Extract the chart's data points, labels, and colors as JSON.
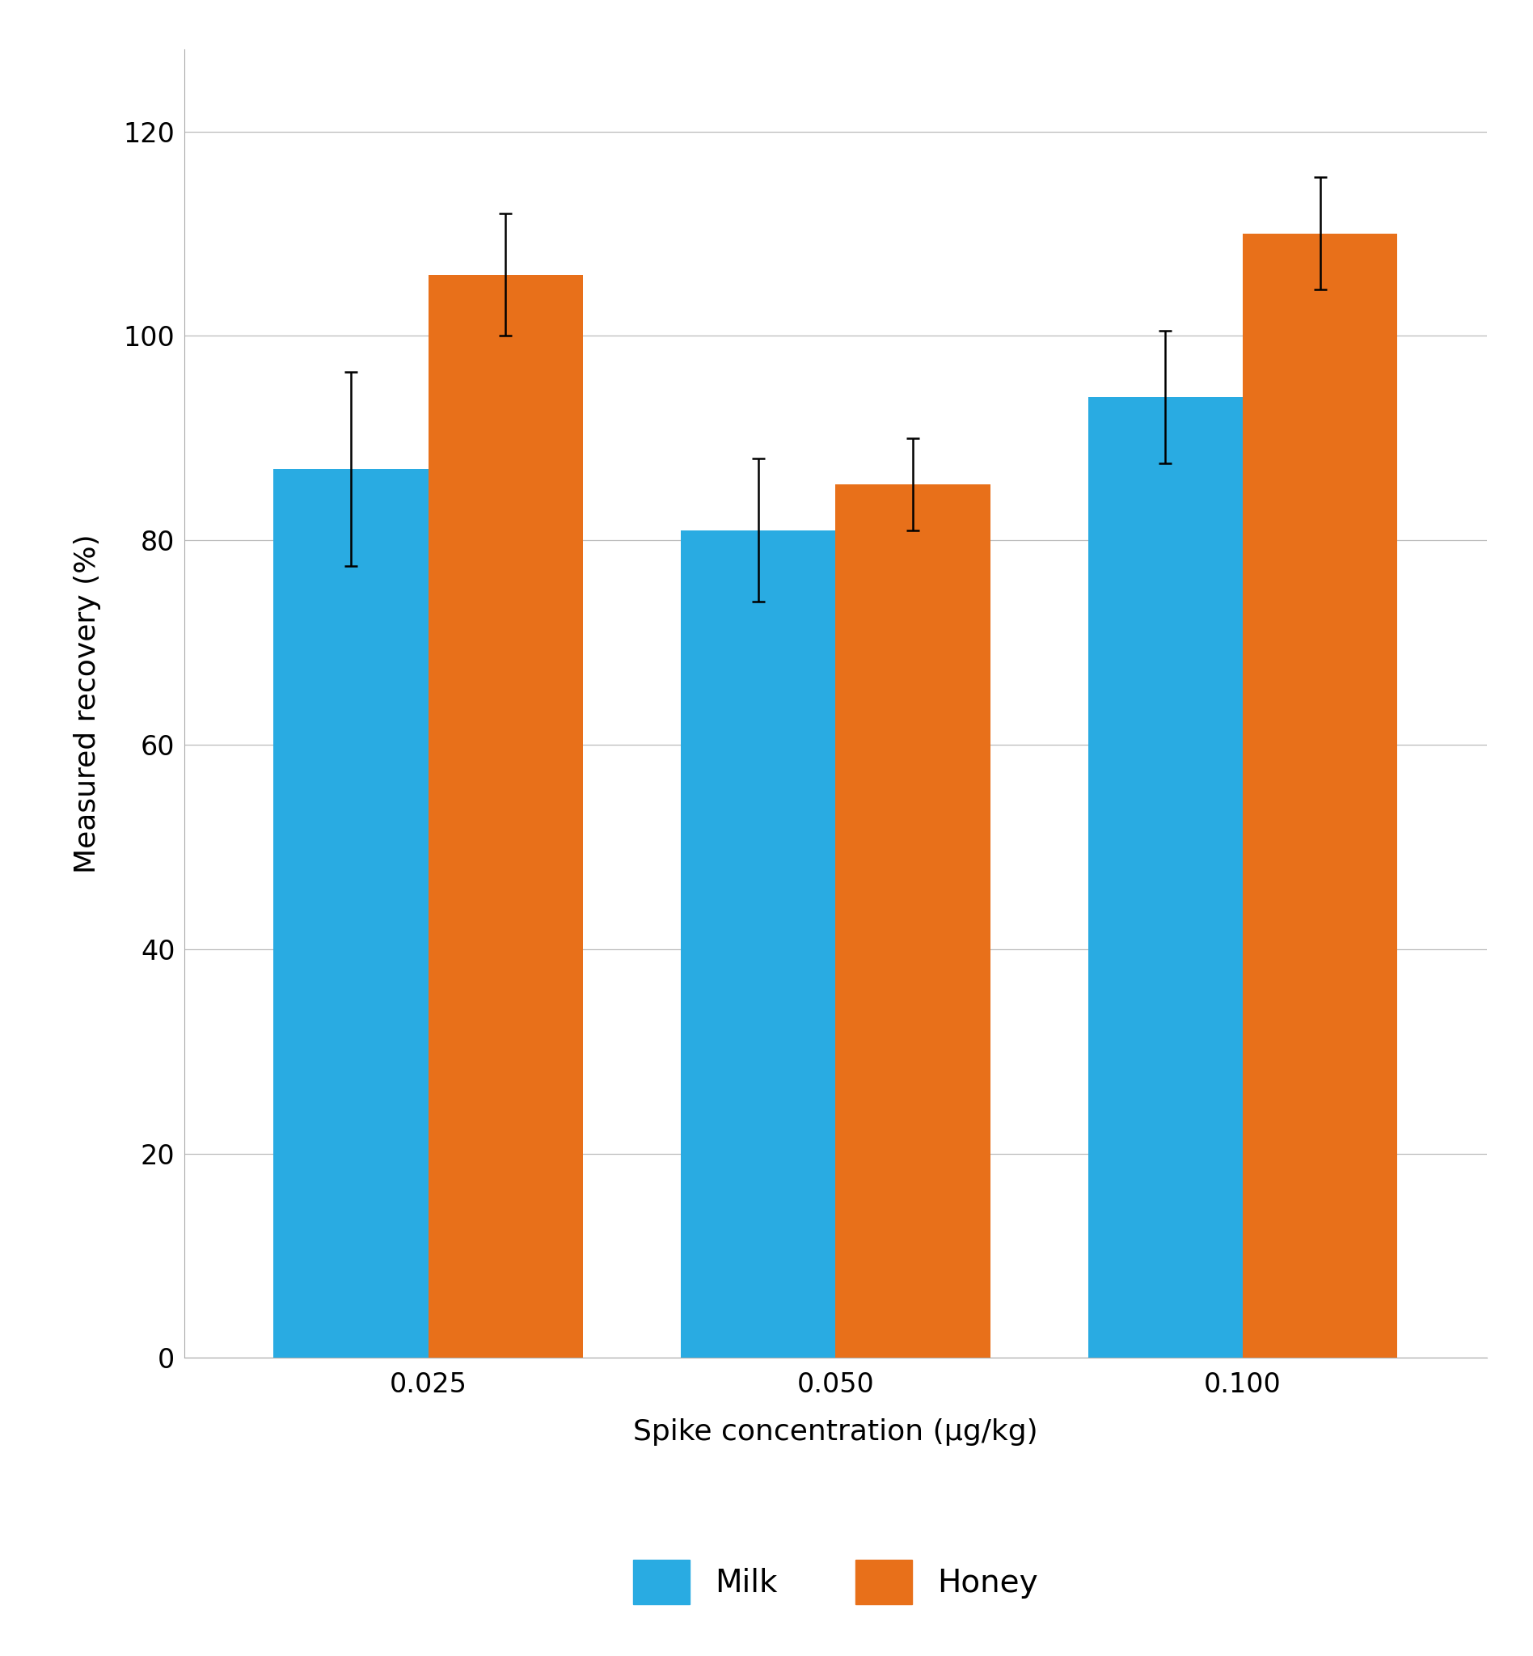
{
  "categories": [
    "0.025",
    "0.050",
    "0.100"
  ],
  "milk_values": [
    87.0,
    81.0,
    94.0
  ],
  "honey_values": [
    106.0,
    85.5,
    110.0
  ],
  "milk_errors": [
    9.5,
    7.0,
    6.5
  ],
  "honey_errors": [
    6.0,
    4.5,
    5.5
  ],
  "milk_color": "#29ABE2",
  "honey_color": "#E8701A",
  "ylabel": "Measured recovery (%)",
  "xlabel": "Spike concentration (μg/kg)",
  "ylim": [
    0,
    128
  ],
  "yticks": [
    0,
    20,
    40,
    60,
    80,
    100,
    120
  ],
  "bar_width": 0.38,
  "legend_labels": [
    "Milk",
    "Honey"
  ],
  "background_color": "#ffffff",
  "grid_color": "#bbbbbb",
  "axis_fontsize": 26,
  "tick_fontsize": 24,
  "legend_fontsize": 28,
  "error_capsize": 6,
  "error_linewidth": 1.8
}
